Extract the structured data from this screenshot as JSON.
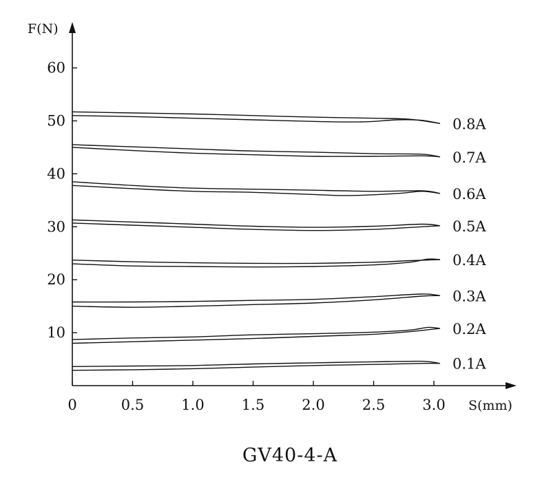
{
  "chart_data": {
    "type": "line",
    "title": "GV40-4-A",
    "xlabel": "S(mm)",
    "ylabel": "F(N)",
    "xlim": [
      0,
      3.5
    ],
    "ylim": [
      0,
      65
    ],
    "x_ticks": [
      "0",
      "0.5",
      "1.0",
      "1.5",
      "2.0",
      "2.5",
      "3.0"
    ],
    "y_ticks": [
      "10",
      "20",
      "30",
      "40",
      "50",
      "60"
    ],
    "grid": false,
    "series": [
      {
        "name": "0.8A",
        "upper": {
          "x": [
            0,
            0.5,
            1.0,
            1.5,
            2.0,
            2.5,
            2.8,
            3.05
          ],
          "y": [
            51.7,
            51.5,
            51.3,
            51.0,
            50.7,
            50.5,
            50.3,
            49.5
          ]
        },
        "lower": {
          "x": [
            0,
            0.5,
            1.0,
            1.5,
            2.0,
            2.4,
            2.7,
            2.9,
            3.05
          ],
          "y": [
            51.0,
            50.8,
            50.5,
            50.2,
            49.9,
            49.8,
            50.2,
            50.1,
            49.5
          ]
        }
      },
      {
        "name": "0.7A",
        "upper": {
          "x": [
            0,
            0.5,
            1.0,
            1.5,
            2.0,
            2.5,
            2.9,
            3.05
          ],
          "y": [
            45.5,
            45.1,
            44.7,
            44.3,
            44.1,
            43.8,
            43.7,
            43.2
          ]
        },
        "lower": {
          "x": [
            0,
            0.5,
            1.0,
            1.5,
            2.0,
            2.5,
            2.9,
            3.05
          ],
          "y": [
            45.0,
            44.4,
            43.9,
            43.6,
            43.3,
            43.3,
            43.4,
            43.2
          ]
        }
      },
      {
        "name": "0.6A",
        "upper": {
          "x": [
            0,
            0.5,
            1.0,
            1.5,
            2.0,
            2.5,
            2.9,
            3.05
          ],
          "y": [
            38.5,
            37.8,
            37.3,
            37.1,
            36.9,
            36.7,
            36.8,
            36.3
          ]
        },
        "lower": {
          "x": [
            0,
            0.5,
            1.0,
            1.5,
            2.0,
            2.3,
            2.7,
            2.9,
            3.05
          ],
          "y": [
            37.8,
            37.2,
            36.7,
            36.5,
            36.1,
            35.9,
            36.3,
            36.7,
            36.3
          ]
        }
      },
      {
        "name": "0.5A",
        "upper": {
          "x": [
            0,
            0.5,
            1.0,
            1.5,
            2.0,
            2.5,
            2.9,
            3.05
          ],
          "y": [
            31.3,
            30.9,
            30.5,
            30.1,
            29.9,
            30.1,
            30.5,
            30.2
          ]
        },
        "lower": {
          "x": [
            0,
            0.5,
            1.0,
            1.5,
            2.0,
            2.5,
            2.9,
            3.05
          ],
          "y": [
            30.7,
            30.3,
            29.9,
            29.5,
            29.3,
            29.5,
            30.0,
            30.2
          ]
        }
      },
      {
        "name": "0.4A",
        "upper": {
          "x": [
            0,
            0.5,
            1.0,
            1.5,
            2.0,
            2.5,
            2.8,
            3.05
          ],
          "y": [
            23.7,
            23.4,
            23.2,
            23.1,
            23.1,
            23.3,
            23.6,
            23.8
          ]
        },
        "lower": {
          "x": [
            0,
            0.5,
            1.0,
            1.5,
            2.0,
            2.5,
            2.8,
            2.95,
            3.05
          ],
          "y": [
            23.0,
            22.6,
            22.5,
            22.4,
            22.5,
            22.8,
            23.3,
            23.9,
            23.8
          ]
        }
      },
      {
        "name": "0.3A",
        "upper": {
          "x": [
            0,
            0.5,
            1.0,
            1.5,
            2.0,
            2.5,
            2.9,
            3.05
          ],
          "y": [
            15.8,
            15.8,
            15.9,
            16.1,
            16.3,
            16.8,
            17.3,
            17.0
          ]
        },
        "lower": {
          "x": [
            0,
            0.5,
            1.0,
            1.5,
            2.0,
            2.5,
            2.9,
            3.05
          ],
          "y": [
            15.0,
            14.8,
            15.0,
            15.3,
            15.6,
            16.2,
            16.9,
            17.0
          ]
        }
      },
      {
        "name": "0.2A",
        "upper": {
          "x": [
            0,
            0.5,
            1.0,
            1.5,
            2.0,
            2.5,
            2.8,
            2.95,
            3.05
          ],
          "y": [
            8.7,
            9.0,
            9.2,
            9.6,
            9.8,
            10.1,
            10.5,
            11.0,
            10.8
          ]
        },
        "lower": {
          "x": [
            0,
            0.5,
            1.0,
            1.5,
            2.0,
            2.5,
            2.8,
            3.05
          ],
          "y": [
            8.0,
            8.3,
            8.6,
            8.9,
            9.3,
            9.7,
            10.2,
            10.8
          ]
        }
      },
      {
        "name": "0.1A",
        "upper": {
          "x": [
            0,
            0.5,
            1.0,
            1.5,
            2.0,
            2.5,
            2.9,
            3.05
          ],
          "y": [
            3.6,
            3.7,
            3.8,
            4.1,
            4.3,
            4.5,
            4.6,
            4.2
          ]
        },
        "lower": {
          "x": [
            0,
            0.5,
            1.0,
            1.5,
            2.0,
            2.5,
            2.9,
            3.05
          ],
          "y": [
            2.9,
            3.0,
            3.2,
            3.5,
            3.8,
            4.0,
            4.2,
            4.2
          ]
        }
      }
    ]
  }
}
